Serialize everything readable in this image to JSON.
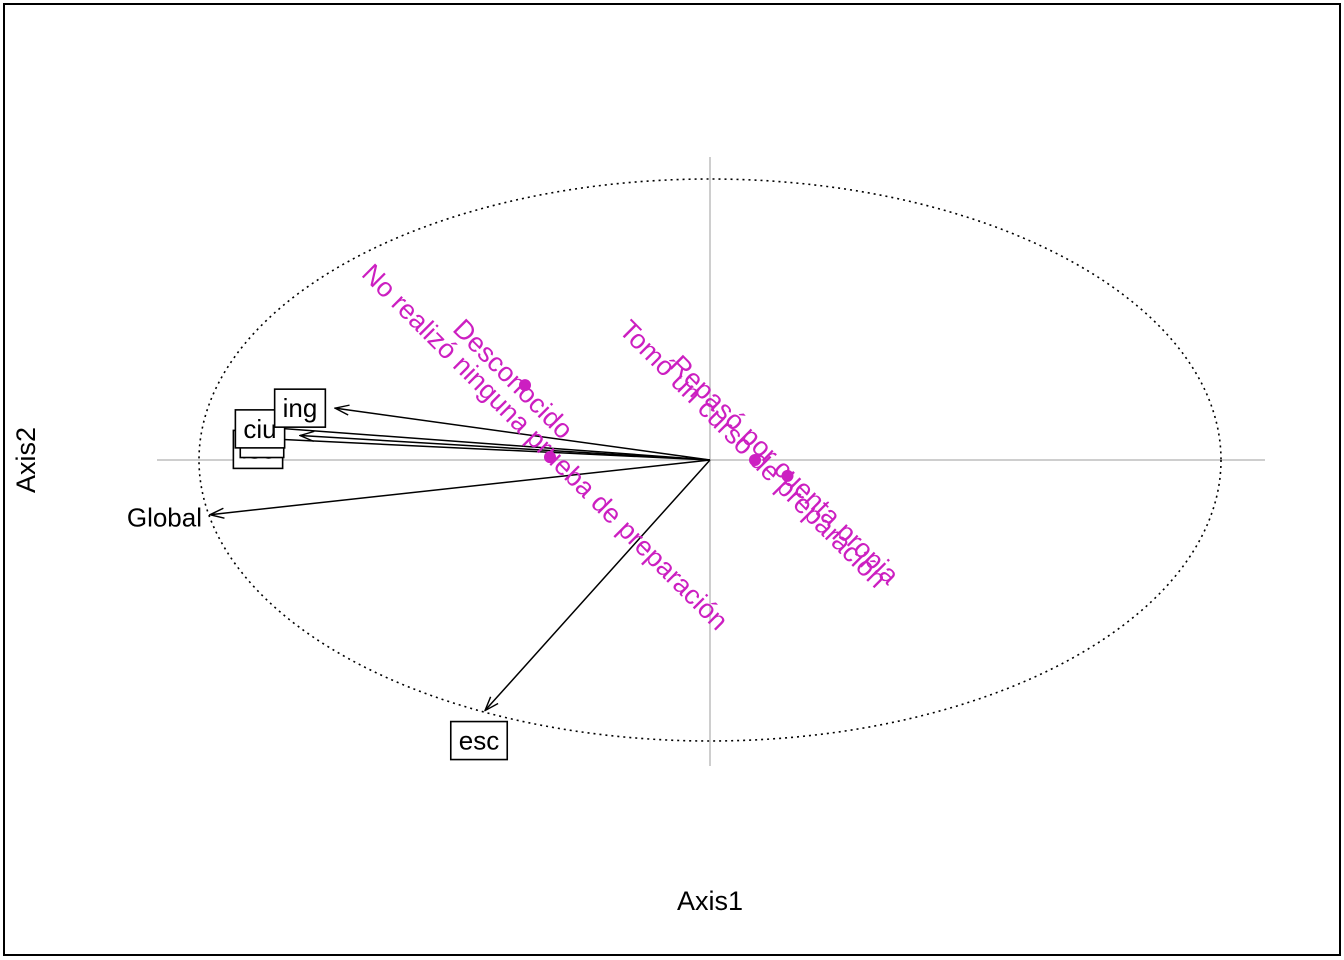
{
  "chart_data": {
    "type": "scatter",
    "title": "",
    "xlabel": "Axis1",
    "ylabel": "Axis2",
    "xlim": [
      -1.12,
      1.12
    ],
    "ylim": [
      -1.0,
      1.0
    ],
    "grid": false,
    "legend": "none",
    "colors": {
      "categories": "#cc1fc1",
      "arrows": "#000000",
      "reference_lines": "#bebebe",
      "circle": "#000000"
    },
    "variables": [
      {
        "name": "ing",
        "x": -0.75,
        "y": 0.18,
        "boxed": true
      },
      {
        "name": "ciu",
        "x": -0.9,
        "y": 0.115,
        "boxed": true
      },
      {
        "name": "nti",
        "x": -0.82,
        "y": 0.085,
        "boxed": true
      },
      {
        "name": "lec",
        "x": -0.9,
        "y": 0.075,
        "boxed": true
      },
      {
        "name": "Global",
        "x": -1.0,
        "y": -0.19,
        "boxed": false
      },
      {
        "name": "esc",
        "x": -0.45,
        "y": -0.87,
        "boxed": true
      }
    ],
    "categories": [
      {
        "name": "Desconocido",
        "x": -0.37,
        "y": 0.26
      },
      {
        "name": "No realizó ninguna prueba de preparación",
        "x": -0.32,
        "y": 0.01
      },
      {
        "name": "Tomó un curso de preparación",
        "x": 0.09,
        "y": 0.0
      },
      {
        "name": "Repasó por cuenta propia",
        "x": 0.155,
        "y": -0.055
      }
    ]
  }
}
